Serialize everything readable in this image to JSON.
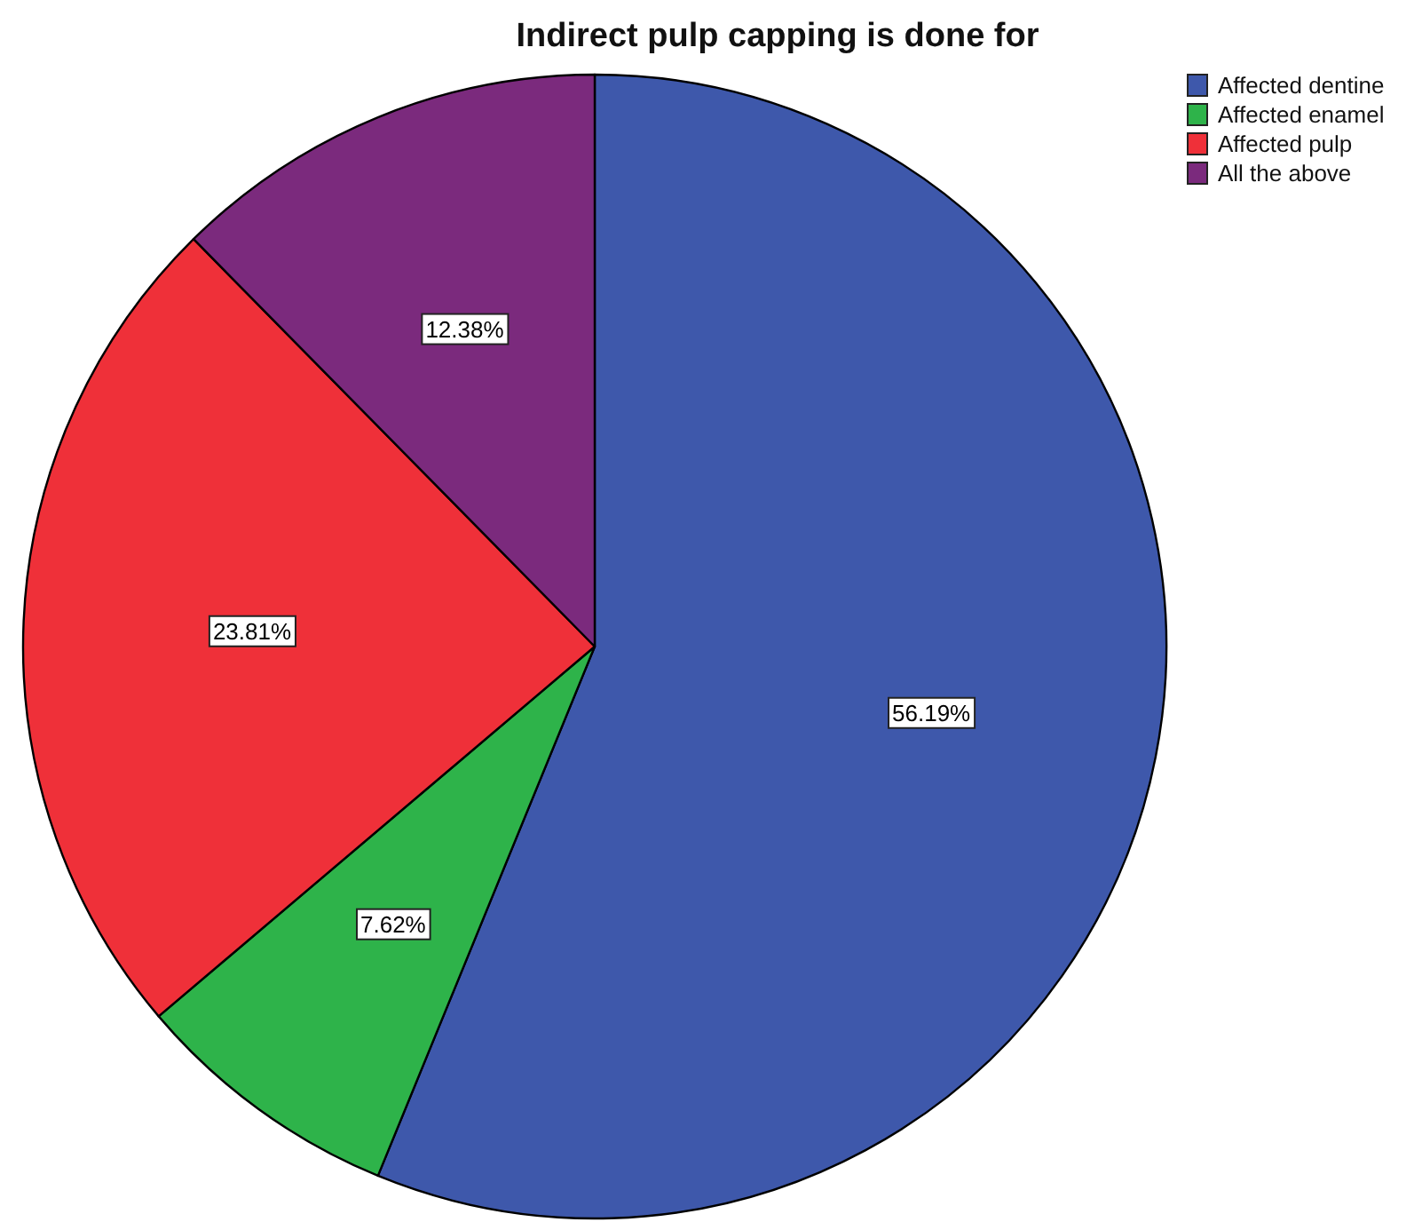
{
  "chart_data": {
    "type": "pie",
    "title": "Indirect pulp capping is done for",
    "categories": [
      "Affected dentine",
      "Affected enamel",
      "Affected pulp",
      "All the above"
    ],
    "values": [
      56.19,
      7.62,
      23.81,
      12.38
    ],
    "colors": [
      "#3e58ab",
      "#2eb34a",
      "#ef3039",
      "#7b2a7d"
    ],
    "value_labels": [
      "56.19%",
      "7.62%",
      "23.81%",
      "12.38%"
    ],
    "legend": "top right"
  }
}
